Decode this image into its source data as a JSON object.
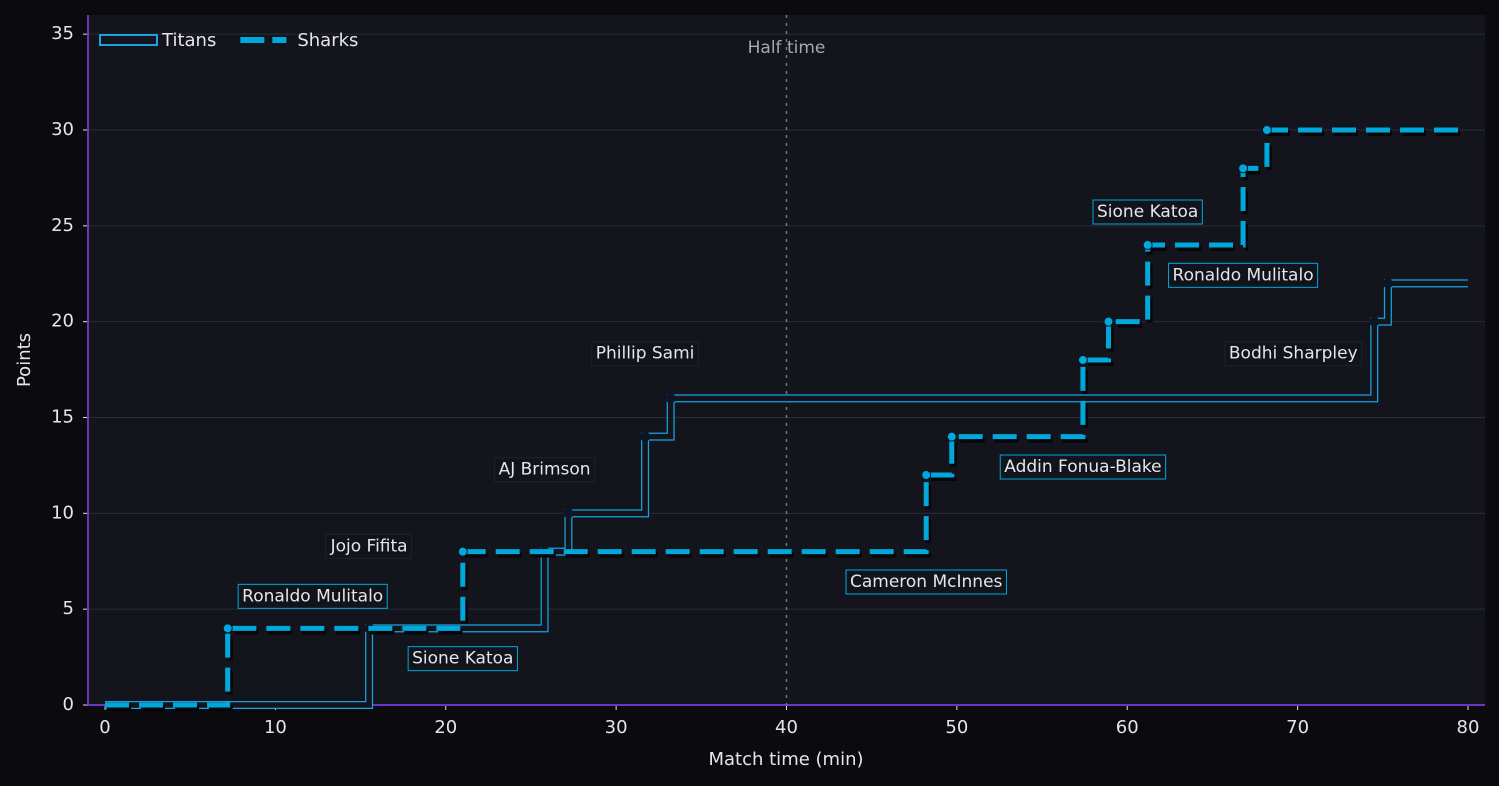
{
  "chart_data": {
    "type": "step",
    "xlabel": "Match time (min)",
    "ylabel": "Points",
    "xlim": [
      -1,
      81
    ],
    "ylim": [
      0,
      36
    ],
    "xticks": [
      0,
      10,
      20,
      30,
      40,
      50,
      60,
      70,
      80
    ],
    "yticks": [
      0,
      5,
      10,
      15,
      20,
      25,
      30,
      35
    ],
    "grid": true,
    "legend": "upper left",
    "vline": {
      "x": 40,
      "label": "Half time"
    },
    "series": [
      {
        "name": "Titans",
        "color": "#1aa3df",
        "style": "solid",
        "x": [
          0,
          15.5,
          25.8,
          27.2,
          31.7,
          33.2,
          74.5,
          75.3,
          80
        ],
        "values": [
          0,
          4,
          8,
          10,
          14,
          16,
          20,
          22,
          22
        ],
        "labels": [
          null,
          "Jojo Fifita",
          "AJ Brimson",
          null,
          "Phillip Sami",
          null,
          "Bodhi Sharpley",
          null,
          null
        ]
      },
      {
        "name": "Sharks",
        "color": "#00a8dc",
        "style": "dashed",
        "x": [
          0,
          7.2,
          21,
          48.2,
          49.7,
          57.4,
          58.9,
          61.2,
          66.8,
          68.2,
          80
        ],
        "values": [
          0,
          4,
          8,
          12,
          14,
          18,
          20,
          24,
          28,
          30,
          30
        ],
        "labels": [
          null,
          "Ronaldo Mulitalo",
          "Sione Katoa",
          "Cameron McInnes",
          null,
          "Addin Fonua-Blake",
          null,
          "Sione Katoa",
          "Ronaldo Mulitalo",
          null,
          null
        ]
      }
    ]
  }
}
